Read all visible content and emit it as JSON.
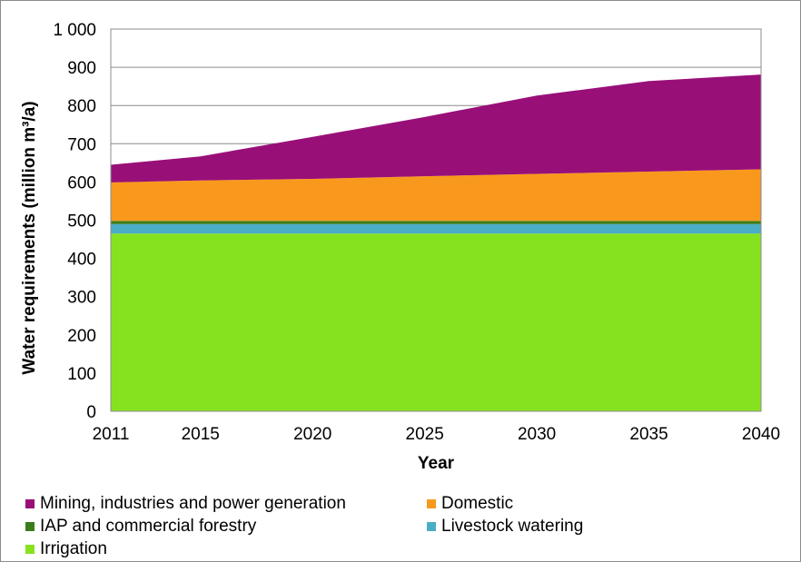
{
  "chart_data": {
    "type": "area",
    "stacked": true,
    "x": [
      2011,
      2015,
      2020,
      2025,
      2030,
      2035,
      2040
    ],
    "x_ticks": [
      "2011",
      "2015",
      "2020",
      "2025",
      "2030",
      "2035",
      "2040"
    ],
    "ylim": [
      0,
      1000
    ],
    "y_ticks": [
      "0",
      "100",
      "200",
      "300",
      "400",
      "500",
      "600",
      "700",
      "800",
      "900",
      "1 000"
    ],
    "xlabel": "Year",
    "ylabel": "Water requirements (million m³/a)",
    "grid": "horizontal",
    "legend_position": "bottom",
    "series": [
      {
        "name": "Irrigation",
        "color": "#86e21f",
        "values": [
          465,
          465,
          465,
          465,
          465,
          465,
          465
        ]
      },
      {
        "name": "Livestock watering",
        "color": "#4bacc6",
        "values": [
          25,
          25,
          25,
          25,
          25,
          25,
          25
        ]
      },
      {
        "name": "IAP and commercial forestry",
        "color": "#3a7d1a",
        "values": [
          8,
          8,
          8,
          8,
          8,
          8,
          8
        ]
      },
      {
        "name": "Domestic",
        "color": "#f8991d",
        "values": [
          101,
          106,
          110,
          117,
          123,
          129,
          135
        ]
      },
      {
        "name": "Mining, industries and power generation",
        "color": "#990f78",
        "values": [
          46,
          63,
          110,
          155,
          205,
          237,
          248
        ]
      }
    ]
  },
  "legend": {
    "items": [
      {
        "label": "Mining, industries and power generation",
        "color": "#990f78"
      },
      {
        "label": "Domestic",
        "color": "#f8991d"
      },
      {
        "label": "IAP and commercial forestry",
        "color": "#3a7d1a"
      },
      {
        "label": "Livestock watering",
        "color": "#4bacc6"
      },
      {
        "label": "Irrigation",
        "color": "#86e21f"
      }
    ]
  }
}
